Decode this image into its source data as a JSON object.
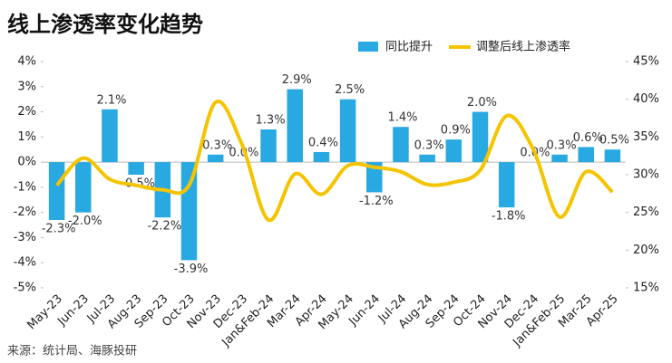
{
  "chart_data": {
    "type": "bar_line",
    "title": "线上渗透率变化趋势",
    "source": "来源：统计局、海豚投研",
    "categories": [
      "May-23",
      "Jun-23",
      "Jul-23",
      "Aug-23",
      "Sep-23",
      "Oct-23",
      "Nov-23",
      "Dec-23",
      "Jan&Feb-24",
      "Mar-24",
      "Apr-24",
      "May-24",
      "Jun-24",
      "Jul-24",
      "Aug-24",
      "Sep-24",
      "Oct-24",
      "Nov-24",
      "Dec-24",
      "Jan&Feb-25",
      "Mar-25",
      "Apr-25"
    ],
    "series": [
      {
        "name": "同比提升",
        "type": "bar",
        "color": "#29a9e1",
        "values": [
          -2.3,
          -2.0,
          2.1,
          -0.5,
          -2.2,
          -3.9,
          0.3,
          0.0,
          1.3,
          2.9,
          0.4,
          2.5,
          -1.2,
          1.4,
          0.3,
          0.9,
          2.0,
          -1.8,
          0.0,
          0.3,
          0.6,
          0.5
        ],
        "value_labels": [
          "-2.3%",
          "-2.0%",
          "2.1%",
          "-0.5%",
          "-2.2%",
          "-3.9%",
          "0.3%",
          "0.0%",
          "1.3%",
          "2.9%",
          "0.4%",
          "2.5%",
          "-1.2%",
          "1.4%",
          "0.3%",
          "0.9%",
          "2.0%",
          "-1.8%",
          "0.0%",
          "0.3%",
          "0.6%",
          "0.5%"
        ]
      },
      {
        "name": "调整后线上渗透率",
        "type": "line",
        "axis": "y2",
        "color": "#f5c400",
        "values": [
          28.6,
          32.2,
          29.4,
          28.6,
          28.0,
          28.6,
          39.6,
          34.0,
          24.0,
          30.1,
          27.4,
          31.2,
          31.0,
          30.4,
          28.7,
          29.0,
          30.6,
          37.8,
          33.4,
          24.4,
          30.4,
          27.7
        ]
      }
    ],
    "ylim": [
      -5,
      4
    ],
    "yticks": [
      {
        "value": -5,
        "label": "-5%"
      },
      {
        "value": -4,
        "label": "-4%"
      },
      {
        "value": -3,
        "label": "-3%"
      },
      {
        "value": -2,
        "label": "-2%"
      },
      {
        "value": -1,
        "label": "-1%"
      },
      {
        "value": 0,
        "label": "0%"
      },
      {
        "value": 1,
        "label": "1%"
      },
      {
        "value": 2,
        "label": "2%"
      },
      {
        "value": 3,
        "label": "3%"
      },
      {
        "value": 4,
        "label": "4%"
      }
    ],
    "y2lim": [
      15,
      45
    ],
    "y2ticks": [
      {
        "value": 15,
        "label": "15%"
      },
      {
        "value": 20,
        "label": "20%"
      },
      {
        "value": 25,
        "label": "25%"
      },
      {
        "value": 30,
        "label": "30%"
      },
      {
        "value": 35,
        "label": "35%"
      },
      {
        "value": 40,
        "label": "40%"
      },
      {
        "value": 45,
        "label": "45%"
      }
    ]
  }
}
